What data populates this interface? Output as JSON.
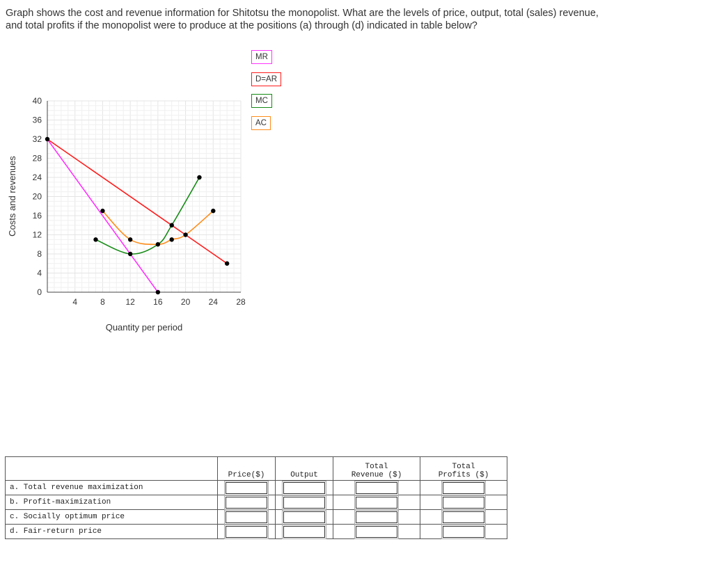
{
  "question": {
    "line1": "Graph shows the cost and revenue information for Shitotsu the monopolist. What are the levels of price, output, total (sales) revenue,",
    "line2": "and total profits if the monopolist were to produce at the positions (a) through (d) indicated in table below?"
  },
  "chart_data": {
    "type": "line",
    "xlabel": "Quantity per period",
    "ylabel": "Costs and revenues",
    "xlim": [
      0,
      28
    ],
    "ylim": [
      0,
      40
    ],
    "x_ticks": [
      "4",
      "8",
      "12",
      "16",
      "20",
      "24",
      "28"
    ],
    "y_ticks": [
      "0",
      "4",
      "8",
      "12",
      "16",
      "20",
      "24",
      "28",
      "32",
      "36",
      "40"
    ],
    "grid": true,
    "legend": [
      "MR",
      "D=AR",
      "MC",
      "AC"
    ],
    "series": [
      {
        "name": "MR",
        "color": "#ff33ff",
        "smooth": false,
        "points": [
          [
            0,
            32
          ],
          [
            16,
            0
          ]
        ]
      },
      {
        "name": "D=AR",
        "color": "#ff1a1a",
        "smooth": false,
        "points": [
          [
            0,
            32
          ],
          [
            26,
            6
          ]
        ]
      },
      {
        "name": "MC",
        "color": "#138a13",
        "smooth": true,
        "points": [
          [
            7,
            11
          ],
          [
            12,
            8
          ],
          [
            16,
            10
          ],
          [
            18,
            14
          ],
          [
            22,
            24
          ]
        ]
      },
      {
        "name": "AC",
        "color": "#ff8c1a",
        "smooth": true,
        "points": [
          [
            8,
            17
          ],
          [
            12,
            11
          ],
          [
            16,
            10
          ],
          [
            18,
            11
          ],
          [
            20,
            12
          ],
          [
            24,
            17
          ]
        ]
      }
    ],
    "markers": [
      [
        0,
        32
      ],
      [
        16,
        0
      ],
      [
        26,
        6
      ],
      [
        7,
        11
      ],
      [
        12,
        8
      ],
      [
        16,
        10
      ],
      [
        18,
        14
      ],
      [
        22,
        24
      ],
      [
        8,
        17
      ],
      [
        12,
        11
      ],
      [
        18,
        11
      ],
      [
        20,
        12
      ],
      [
        24,
        17
      ]
    ]
  },
  "table": {
    "headers": {
      "price": "Price($)",
      "output": "Output",
      "total_revenue_1": "Total",
      "total_revenue_2": "Revenue ($)",
      "total_profits_1": "Total",
      "total_profits_2": "Profits ($)"
    },
    "rows": [
      {
        "label": "a. Total revenue maximization"
      },
      {
        "label": "b. Profit-maximization"
      },
      {
        "label": "c. Socially optimum price"
      },
      {
        "label": "d. Fair-return price"
      }
    ]
  }
}
